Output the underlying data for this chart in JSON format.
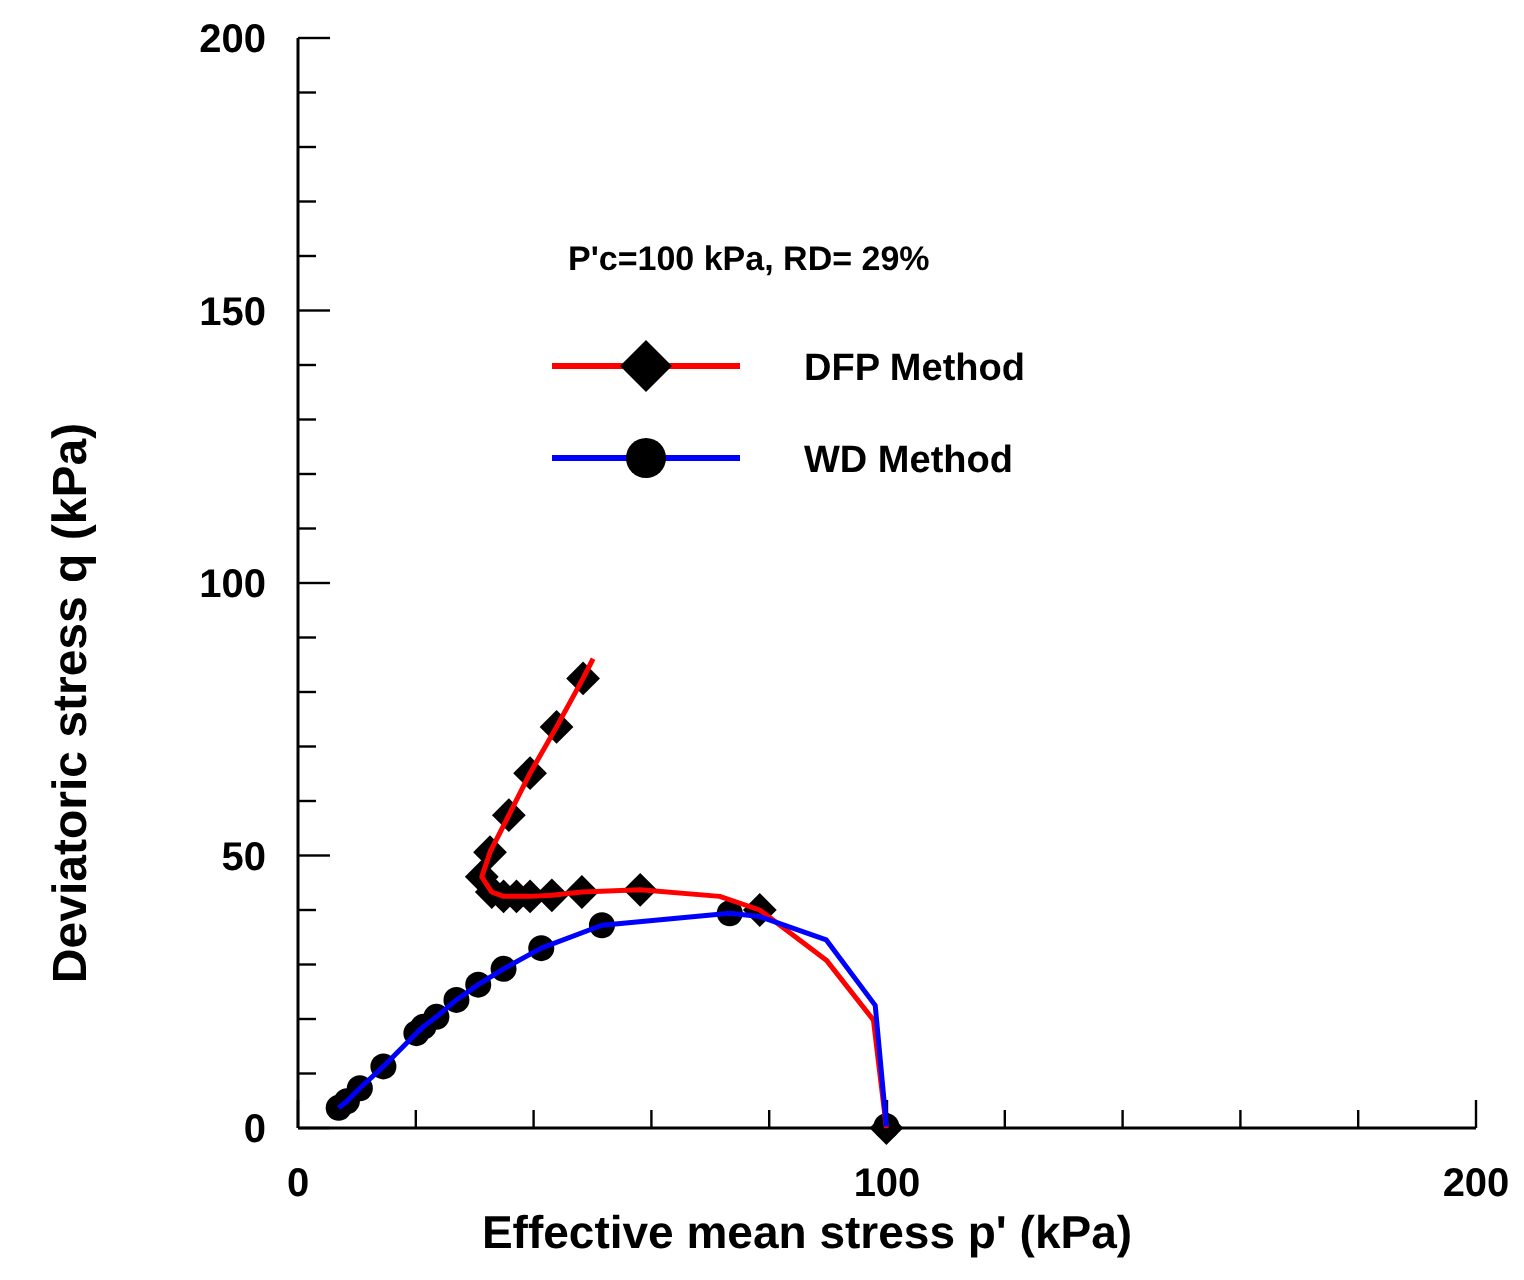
{
  "chart_data": {
    "type": "line",
    "xlabel": "Effective mean stress p' (kPa)",
    "ylabel": "Deviatoric stress q (kPa)",
    "xlim": [
      0,
      200
    ],
    "ylim": [
      0,
      200
    ],
    "xticks": [
      0,
      {
        "value": 20,
        "label": null
      },
      {
        "value": 40,
        "label": null
      },
      {
        "value": 60,
        "label": null
      },
      {
        "value": 80,
        "label": null
      },
      100,
      {
        "value": 120,
        "label": null
      },
      {
        "value": 140,
        "label": null
      },
      {
        "value": 160,
        "label": null
      },
      {
        "value": 180,
        "label": null
      },
      200
    ],
    "yticks": [
      0,
      {
        "value": 10,
        "label": null
      },
      {
        "value": 20,
        "label": null
      },
      {
        "value": 30,
        "label": null
      },
      {
        "value": 40,
        "label": null
      },
      50,
      {
        "value": 60,
        "label": null
      },
      {
        "value": 70,
        "label": null
      },
      {
        "value": 80,
        "label": null
      },
      {
        "value": 90,
        "label": null
      },
      100,
      {
        "value": 110,
        "label": null
      },
      {
        "value": 120,
        "label": null
      },
      {
        "value": 130,
        "label": null
      },
      {
        "value": 140,
        "label": null
      },
      150,
      {
        "value": 160,
        "label": null
      },
      {
        "value": 170,
        "label": null
      },
      {
        "value": 180,
        "label": null
      },
      {
        "value": 190,
        "label": null
      },
      200
    ],
    "grid": false,
    "legend": "top left",
    "annotations": [
      "P'c=100 kPa, RD= 29%"
    ],
    "series": [
      {
        "name": "DFP Method",
        "color": "#ff0000",
        "marker": "none",
        "x": [
          50.1,
          48.4,
          43.9,
          39.4,
          35.8,
          32.6,
          31.2,
          32.9,
          34.9,
          37.1,
          39.4,
          43.1,
          48.2,
          58.1,
          71.6,
          78.4,
          89.7,
          97.7,
          99.9
        ],
        "values": [
          86.1,
          82.5,
          73.6,
          65.1,
          57.4,
          50.6,
          46.1,
          43.3,
          42.5,
          42.5,
          42.5,
          42.7,
          43.3,
          43.7,
          42.5,
          40.0,
          30.8,
          19.8,
          0
        ]
      },
      {
        "type": "scatter",
        "color": "#000000",
        "marker": "diamond",
        "x": [
          48.4,
          43.9,
          39.4,
          35.8,
          32.6,
          31.2,
          32.9,
          34.9,
          37.1,
          39.4,
          43.1,
          48.2,
          58.1,
          78.4,
          99.9
        ],
        "values": [
          82.5,
          73.6,
          65.1,
          57.4,
          50.6,
          46.1,
          43.3,
          42.5,
          42.5,
          42.5,
          42.7,
          43.3,
          43.7,
          40.0,
          0
        ]
      },
      {
        "name": "WD Method",
        "color": "#0000ff",
        "marker": "none",
        "x": [
          6.9,
          8.3,
          10.5,
          14.5,
          20.1,
          21.3,
          23.5,
          26.9,
          30.6,
          34.9,
          41.3,
          51.6,
          73.3,
          78.4,
          89.7,
          98.0,
          99.9
        ],
        "values": [
          3.7,
          4.9,
          7.3,
          11.3,
          17.4,
          18.6,
          20.4,
          23.5,
          26.3,
          29.2,
          33.0,
          37.2,
          39.4,
          38.8,
          34.5,
          22.5,
          0.3
        ]
      },
      {
        "type": "scatter",
        "color": "#000000",
        "marker": "circle",
        "x": [
          6.9,
          8.3,
          10.5,
          14.5,
          20.1,
          21.3,
          23.5,
          26.9,
          30.6,
          34.9,
          41.3,
          51.6,
          73.3,
          99.9
        ],
        "values": [
          3.7,
          4.9,
          7.3,
          11.3,
          17.4,
          18.6,
          20.4,
          23.5,
          26.3,
          29.2,
          33.0,
          37.2,
          39.4,
          0.3
        ]
      }
    ]
  }
}
